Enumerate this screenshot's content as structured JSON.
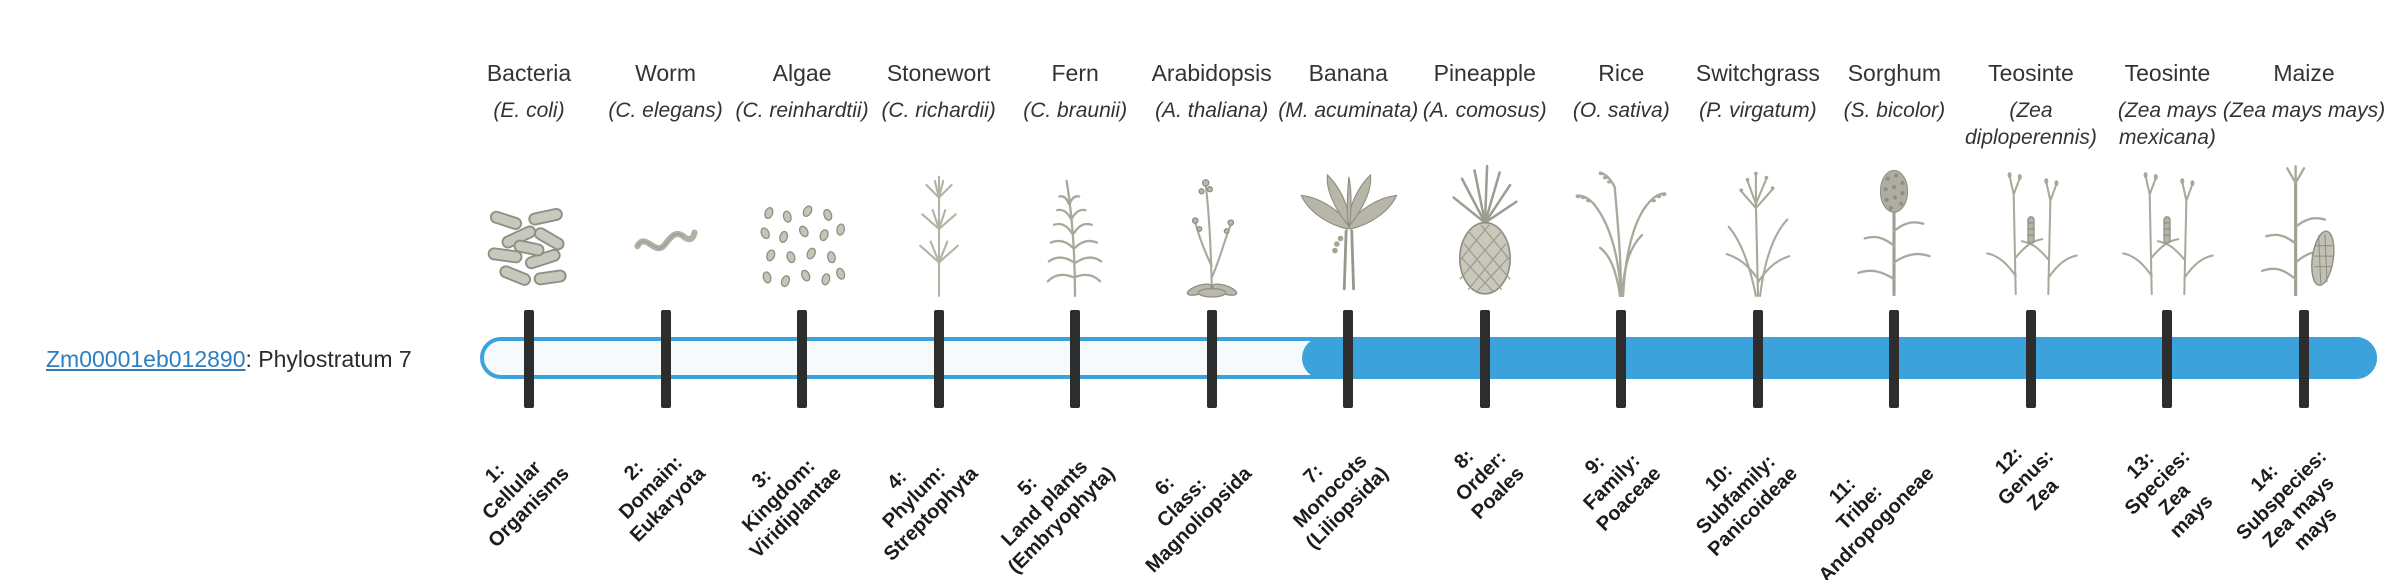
{
  "gene": {
    "id": "Zm00001eb012890",
    "suffix": ": Phylostratum 7"
  },
  "colors": {
    "accent_blue": "#3ba2dc",
    "link_blue": "#2f7dc1",
    "tick_dark": "#2d2d2d",
    "bar_empty": "#f7fafc"
  },
  "bar": {
    "total_strata": 14,
    "filled_from_stratum": 7
  },
  "organisms": [
    {
      "name": "Bacteria",
      "sci": "(E. coli)",
      "icon": "bacteria-icon",
      "stratum": "1:\nCellular\nOrganisms"
    },
    {
      "name": "Worm",
      "sci": "(C. elegans)",
      "icon": "worm-icon",
      "stratum": "2:\nDomain:\nEukaryota"
    },
    {
      "name": "Algae",
      "sci": "(C. reinhardtii)",
      "icon": "algae-icon",
      "stratum": "3:\nKingdom:\nViridiplantae"
    },
    {
      "name": "Stonewort",
      "sci": "(C. richardii)",
      "icon": "stonewort-icon",
      "stratum": "4:\nPhylum:\nStreptophyta"
    },
    {
      "name": "Fern",
      "sci": "(C. braunii)",
      "icon": "fern-icon",
      "stratum": "5:\nLand plants\n(Embryophyta)"
    },
    {
      "name": "Arabidopsis",
      "sci": "(A. thaliana)",
      "icon": "arabidopsis-icon",
      "stratum": "6:\nClass:\nMagnoliopsida"
    },
    {
      "name": "Banana",
      "sci": "(M. acuminata)",
      "icon": "banana-icon",
      "stratum": "7:\nMonocots\n(Liliopsida)"
    },
    {
      "name": "Pineapple",
      "sci": "(A. comosus)",
      "icon": "pineapple-icon",
      "stratum": "8:\nOrder:\nPoales"
    },
    {
      "name": "Rice",
      "sci": "(O. sativa)",
      "icon": "rice-icon",
      "stratum": "9:\nFamily:\nPoaceae"
    },
    {
      "name": "Switchgrass",
      "sci": "(P. virgatum)",
      "icon": "switchgrass-icon",
      "stratum": "10:\nSubfamily:\nPanicoideae"
    },
    {
      "name": "Sorghum",
      "sci": "(S. bicolor)",
      "icon": "sorghum-icon",
      "stratum": "11:\nTribe:\nAndropogoneae"
    },
    {
      "name": "Teosinte",
      "sci": "(Zea diploperennis)",
      "icon": "teosinte-icon",
      "stratum": "12:\nGenus:\nZea"
    },
    {
      "name": "Teosinte",
      "sci": "(Zea mays mexicana)",
      "icon": "teosinte-icon",
      "stratum": "13:\nSpecies:\nZea\nmays"
    },
    {
      "name": "Maize",
      "sci": "(Zea mays mays)",
      "icon": "maize-icon",
      "stratum": "14:\nSubspecies:\nZea mays\nmays"
    }
  ]
}
